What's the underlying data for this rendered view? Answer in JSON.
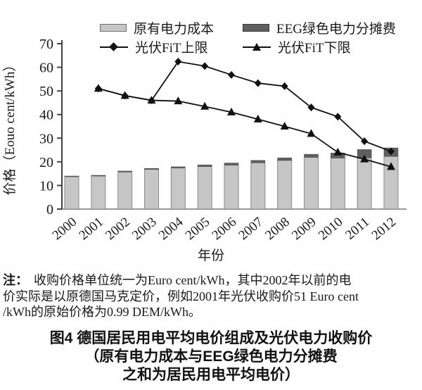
{
  "figure": {
    "legend": {
      "bar_base": "原有电力成本",
      "bar_eeg": "EEG绿色电力分摊费",
      "line_upper": "光伏FiT上限",
      "line_lower": "光伏FiT下限"
    },
    "y_axis_title": "价格（Eouo cent/kWh）",
    "x_axis_title": "年份",
    "note": {
      "label": "注：",
      "lines": [
        "收购价格单位统一为Euro cent/kWh，其中2002年以前的电",
        "价实际是以原德国马克定价，例如2001年光伏收购价51 Euro cent",
        "/kWh的原始价格为0.99 DEM/kWh。"
      ]
    },
    "caption": {
      "lines": [
        "图4  德国居民用电平均电价组成及光伏电力收购价",
        "（原有电力成本与EEG绿色电力分摊费",
        "之和为居民用电平均电价）"
      ]
    }
  },
  "chart_data": {
    "type": "bar",
    "subtype": "stacked-bars-with-lines",
    "title": "",
    "xlabel": "年份",
    "ylabel": "价格（Eouo cent/kWh）",
    "ylim": [
      0,
      70
    ],
    "ytick_step": 10,
    "grid": false,
    "legend_position": "top",
    "categories": [
      "2000",
      "2001",
      "2002",
      "2003",
      "2004",
      "2005",
      "2006",
      "2007",
      "2008",
      "2009",
      "2010",
      "2011",
      "2012"
    ],
    "bar_series": [
      {
        "name": "原有电力成本",
        "stack": "avg_price",
        "color": "#c6c6c6",
        "values": [
          13.8,
          14.0,
          15.7,
          16.8,
          17.4,
          18.0,
          18.6,
          19.6,
          20.6,
          21.9,
          21.6,
          21.7,
          22.3
        ]
      },
      {
        "name": "EEG绿色电力分摊费",
        "stack": "avg_price",
        "color": "#5f5f5f",
        "values": [
          0.2,
          0.3,
          0.4,
          0.4,
          0.5,
          0.7,
          0.9,
          1.0,
          1.1,
          1.3,
          2.1,
          3.5,
          3.6
        ]
      }
    ],
    "line_series": [
      {
        "name": "光伏FiT上限",
        "marker": "diamond",
        "color": "#111111",
        "values": [
          null,
          51,
          48,
          46,
          62.4,
          60.5,
          56.8,
          53.3,
          52,
          43,
          39.1,
          28.7,
          24.4
        ]
      },
      {
        "name": "光伏FiT下限",
        "marker": "triangle",
        "color": "#111111",
        "values": [
          null,
          51,
          48,
          46,
          45.7,
          43.4,
          41,
          38,
          35,
          31.9,
          24,
          21.1,
          17.9
        ]
      }
    ]
  },
  "colors": {
    "bar_base_fill": "#c6c6c6",
    "bar_base_stroke": "#8a8a8a",
    "bar_eeg_fill": "#5f5f5f",
    "line_color": "#111111",
    "x_axis_color": "#9a9a9a",
    "y_axis_color": "#444444"
  }
}
